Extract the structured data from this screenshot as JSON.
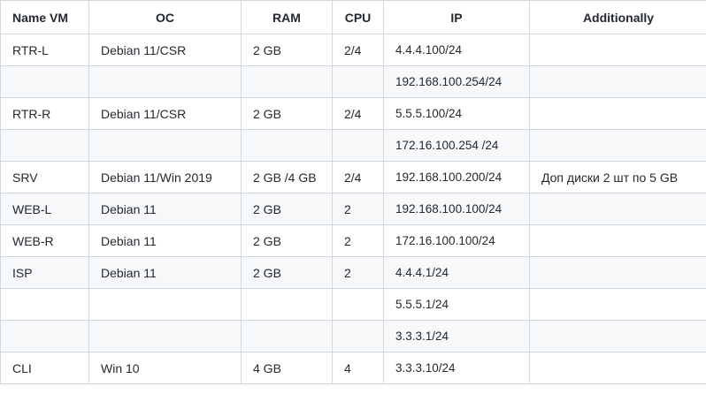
{
  "table": {
    "headers": [
      "Name VM",
      "OC",
      "RAM",
      "CPU",
      "IP",
      "Additionally"
    ],
    "rows": [
      [
        "RTR-L",
        "Debian 11/CSR",
        "2 GB",
        "2/4",
        "4.4.4.100/24",
        ""
      ],
      [
        "",
        "",
        "",
        "",
        "192.168.100.254/24",
        ""
      ],
      [
        "RTR-R",
        "Debian 11/CSR",
        "2 GB",
        "2/4",
        "5.5.5.100/24",
        ""
      ],
      [
        "",
        "",
        "",
        "",
        "172.16.100.254 /24",
        ""
      ],
      [
        "SRV",
        "Debian 11/Win 2019",
        "2 GB /4 GB",
        "2/4",
        "192.168.100.200/24",
        "Доп диски 2 шт по 5 GB"
      ],
      [
        "WEB-L",
        "Debian 11",
        "2 GB",
        "2",
        "192.168.100.100/24",
        ""
      ],
      [
        "WEB-R",
        "Debian 11",
        "2 GB",
        "2",
        "172.16.100.100/24",
        ""
      ],
      [
        "ISP",
        "Debian 11",
        "2 GB",
        "2",
        "4.4.4.1/24",
        ""
      ],
      [
        "",
        "",
        "",
        "",
        "5.5.5.1/24",
        ""
      ],
      [
        "",
        "",
        "",
        "",
        "3.3.3.1/24",
        ""
      ],
      [
        "CLI",
        "Win 10",
        "4 GB",
        "4",
        "3.3.3.10/24",
        ""
      ]
    ]
  }
}
